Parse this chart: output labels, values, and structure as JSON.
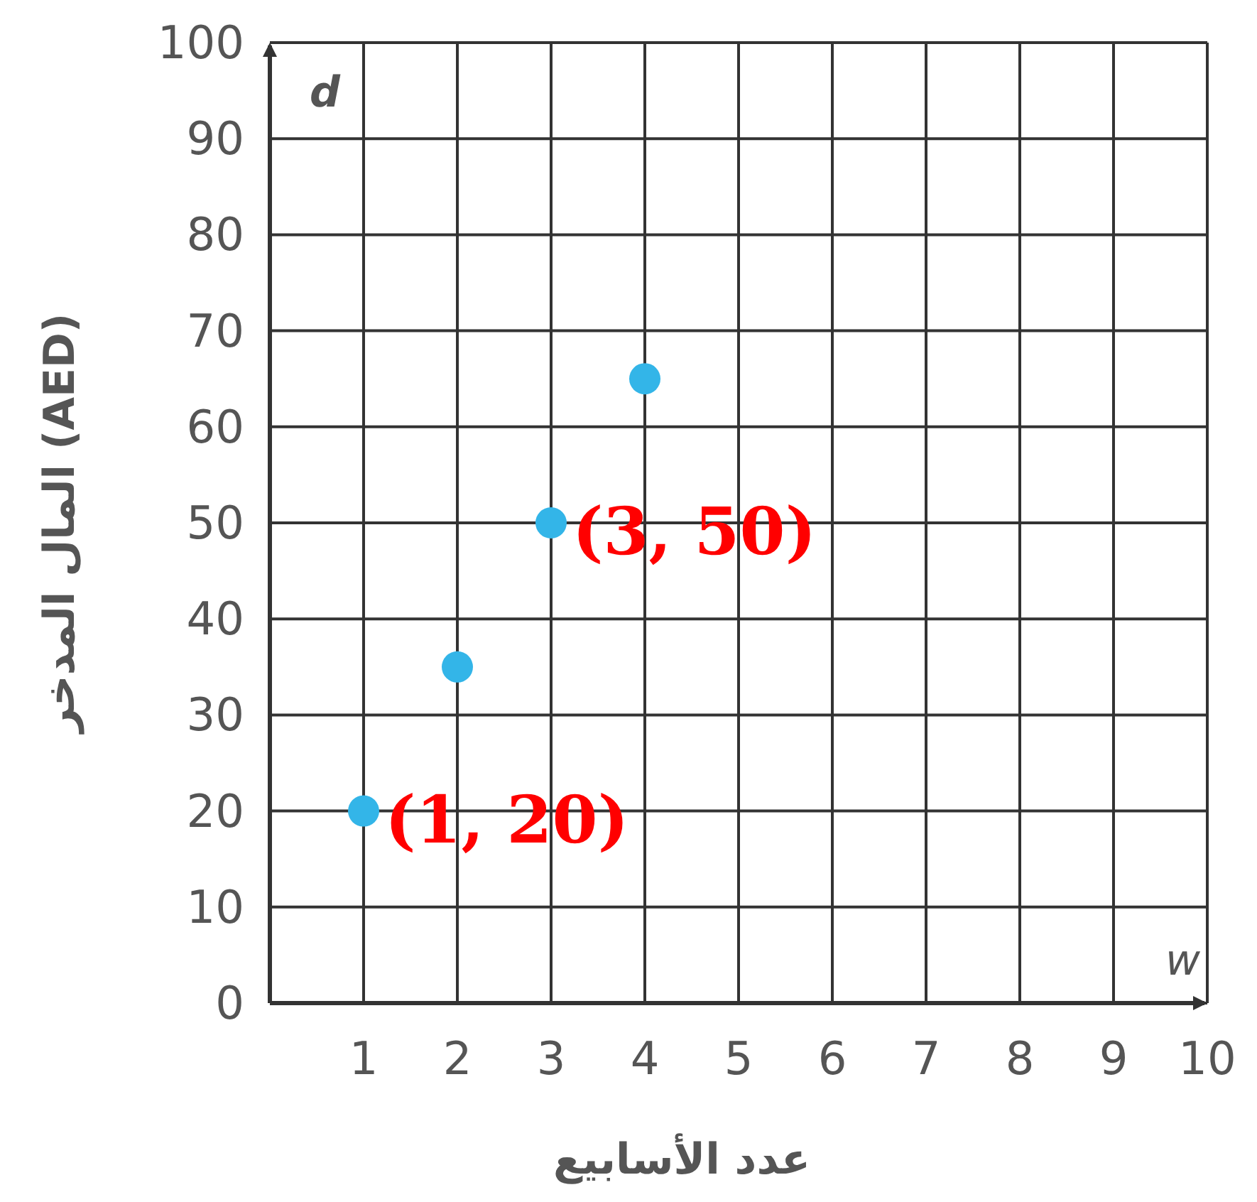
{
  "chart_data": {
    "type": "scatter",
    "xlabel": "عدد الأسابيع",
    "ylabel": "المال المدخر (AED)",
    "x": [
      1,
      2,
      3,
      4
    ],
    "series": [
      {
        "color": "#33b5e8",
        "values": [
          20,
          35,
          50,
          65
        ]
      }
    ],
    "xlim": [
      0,
      10
    ],
    "xticks": [
      1,
      2,
      3,
      4,
      5,
      6,
      7,
      8,
      9,
      10
    ],
    "ylim": [
      0,
      100
    ],
    "yticks": [
      0,
      10,
      20,
      30,
      40,
      50,
      60,
      70,
      80,
      90,
      100
    ],
    "grid": true,
    "marker": "circle",
    "annotations": [
      "d",
      "w",
      {
        "text": "(1, 20)",
        "x": 1,
        "y": 20
      },
      {
        "text": "(3, 50)",
        "x": 3,
        "y": 50
      }
    ]
  }
}
